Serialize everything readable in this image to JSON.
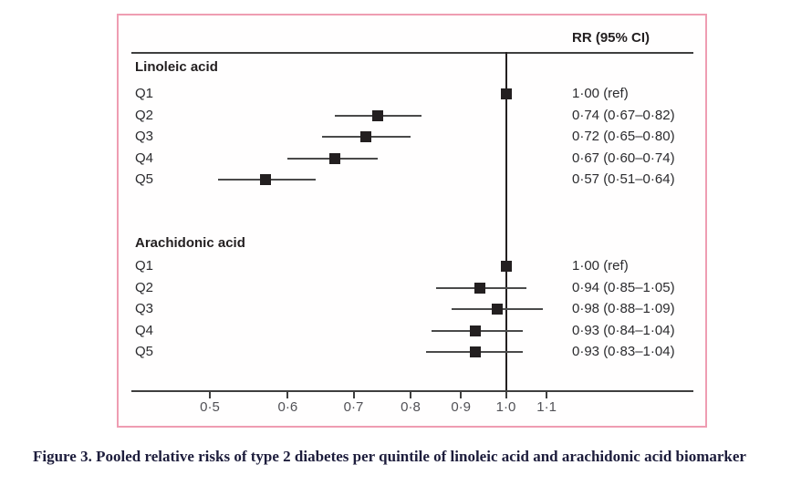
{
  "caption": {
    "text": "Figure 3. Pooled relative risks of type 2 diabetes per quintile of linoleic acid and arachidonic acid biomarker"
  },
  "chart_data": {
    "type": "forest",
    "column_header": "RR (95% CI)",
    "xscale": "log",
    "ref_line": 1.0,
    "xlim": [
      0.42,
      1.25
    ],
    "xticks": [
      0.5,
      0.6,
      0.7,
      0.8,
      0.9,
      1.0,
      1.1
    ],
    "xtick_labels": [
      "0·5",
      "0·6",
      "0·7",
      "0·8",
      "0·9",
      "1·0",
      "1·1"
    ],
    "legend_position": "none",
    "grid": false,
    "groups": [
      {
        "name": "Linoleic acid",
        "rows": [
          {
            "quintile": "Q1",
            "rr": 1.0,
            "ci_low": null,
            "ci_high": null,
            "rr_text": "1·00 (ref)"
          },
          {
            "quintile": "Q2",
            "rr": 0.74,
            "ci_low": 0.67,
            "ci_high": 0.82,
            "rr_text": "0·74 (0·67–0·82)"
          },
          {
            "quintile": "Q3",
            "rr": 0.72,
            "ci_low": 0.65,
            "ci_high": 0.8,
            "rr_text": "0·72 (0·65–0·80)"
          },
          {
            "quintile": "Q4",
            "rr": 0.67,
            "ci_low": 0.6,
            "ci_high": 0.74,
            "rr_text": "0·67 (0·60–0·74)"
          },
          {
            "quintile": "Q5",
            "rr": 0.57,
            "ci_low": 0.51,
            "ci_high": 0.64,
            "rr_text": "0·57 (0·51–0·64)"
          }
        ]
      },
      {
        "name": "Arachidonic acid",
        "rows": [
          {
            "quintile": "Q1",
            "rr": 1.0,
            "ci_low": null,
            "ci_high": null,
            "rr_text": "1·00 (ref)"
          },
          {
            "quintile": "Q2",
            "rr": 0.94,
            "ci_low": 0.85,
            "ci_high": 1.05,
            "rr_text": "0·94 (0·85–1·05)"
          },
          {
            "quintile": "Q3",
            "rr": 0.98,
            "ci_low": 0.88,
            "ci_high": 1.09,
            "rr_text": "0·98 (0·88–1·09)"
          },
          {
            "quintile": "Q4",
            "rr": 0.93,
            "ci_low": 0.84,
            "ci_high": 1.04,
            "rr_text": "0·93 (0·84–1·04)"
          },
          {
            "quintile": "Q5",
            "rr": 0.93,
            "ci_low": 0.83,
            "ci_high": 1.04,
            "rr_text": "0·93 (0·83–1·04)"
          }
        ]
      }
    ],
    "colors": {
      "panel_border": "#ef9db2",
      "axis_line": "#3f3f3f",
      "marker": "#231f20",
      "ci_line": "#4a4a4a",
      "tick_text": "#515156",
      "caption_text": "#1d1d3c"
    }
  }
}
